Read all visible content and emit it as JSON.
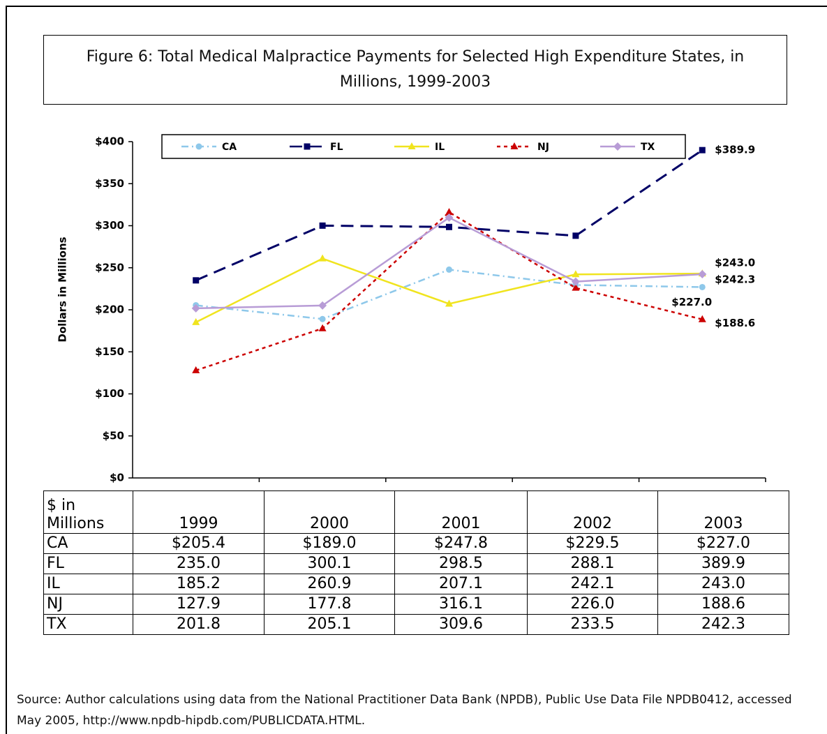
{
  "chart_data": {
    "type": "line",
    "title": "Figure 6: Total Medical Malpractice Payments for Selected High Expenditure States, in Millions, 1999-2003",
    "y_label": "Dollars in Millions",
    "categories": [
      "1999",
      "2000",
      "2001",
      "2002",
      "2003"
    ],
    "series": [
      {
        "name": "CA",
        "color": "#8ec8ea",
        "marker": "circle",
        "values": [
          205.4,
          189.0,
          247.8,
          229.5,
          227.0
        ],
        "value_labels": [
          null,
          null,
          null,
          null,
          "$227.0"
        ]
      },
      {
        "name": "FL",
        "color": "#000066",
        "marker": "square",
        "values": [
          235.0,
          300.1,
          298.5,
          288.1,
          389.9
        ],
        "value_labels": [
          null,
          null,
          null,
          null,
          "$389.9"
        ]
      },
      {
        "name": "IL",
        "color": "#f0e41e",
        "marker": "triangle",
        "values": [
          185.2,
          260.9,
          207.1,
          242.1,
          243.0
        ],
        "value_labels": [
          null,
          null,
          null,
          null,
          "$243.0"
        ]
      },
      {
        "name": "NJ",
        "color": "#cc0000",
        "marker": "triangle",
        "values": [
          127.9,
          177.8,
          316.1,
          226.0,
          188.6
        ],
        "value_labels": [
          null,
          null,
          null,
          null,
          "$188.6"
        ]
      },
      {
        "name": "TX",
        "color": "#b89cd6",
        "marker": "diamond",
        "values": [
          201.8,
          205.1,
          309.6,
          233.5,
          242.3
        ],
        "value_labels": [
          null,
          null,
          null,
          null,
          "$242.3"
        ]
      }
    ],
    "ylim": [
      0,
      400
    ],
    "yticks": [
      {
        "value": 0,
        "label": "$0"
      },
      {
        "value": 50,
        "label": "$50"
      },
      {
        "value": 100,
        "label": "$100"
      },
      {
        "value": 150,
        "label": "$150"
      },
      {
        "value": 200,
        "label": "$200"
      },
      {
        "value": 250,
        "label": "$250"
      },
      {
        "value": 300,
        "label": "$300"
      },
      {
        "value": 350,
        "label": "$350"
      },
      {
        "value": 400,
        "label": "$400"
      }
    ],
    "legend": "top"
  },
  "table": {
    "header": [
      "$ in Millions",
      "1999",
      "2000",
      "2001",
      "2002",
      "2003"
    ],
    "rows": [
      [
        "CA",
        "$205.4",
        "$189.0",
        "$247.8",
        "$229.5",
        "$227.0"
      ],
      [
        "FL",
        "235.0",
        "300.1",
        "298.5",
        "288.1",
        "389.9"
      ],
      [
        "IL",
        "185.2",
        "260.9",
        "207.1",
        "242.1",
        "243.0"
      ],
      [
        "NJ",
        "127.9",
        "177.8",
        "316.1",
        "226.0",
        "188.6"
      ],
      [
        "TX",
        "201.8",
        "205.1",
        "309.6",
        "233.5",
        "242.3"
      ]
    ]
  },
  "source": "Source:  Author calculations using data from the National Practitioner Data Bank (NPDB), Public Use Data File NPDB0412, accessed May 2005, http://www.npdb-hipdb.com/PUBLICDATA.HTML."
}
